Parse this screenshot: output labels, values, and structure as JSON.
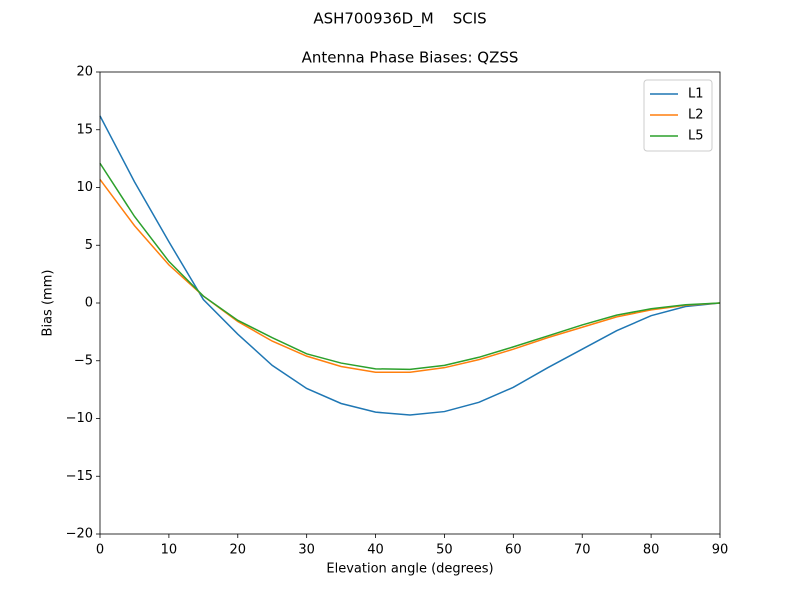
{
  "chart_data": {
    "type": "line",
    "suptitle": "ASH700936D_M    SCIS",
    "title": "Antenna Phase Biases: QZSS",
    "xlabel": "Elevation angle (degrees)",
    "ylabel": "Bias (mm)",
    "x": [
      0,
      5,
      10,
      15,
      20,
      25,
      30,
      35,
      40,
      45,
      50,
      55,
      60,
      65,
      70,
      75,
      80,
      85,
      90
    ],
    "series": [
      {
        "name": "L1",
        "color": "#1f77b4",
        "values": [
          16.2,
          10.5,
          5.3,
          0.3,
          -2.7,
          -5.4,
          -7.4,
          -8.7,
          -9.45,
          -9.7,
          -9.4,
          -8.6,
          -7.3,
          -5.6,
          -4.0,
          -2.4,
          -1.1,
          -0.3,
          0
        ]
      },
      {
        "name": "L2",
        "color": "#ff7f0e",
        "values": [
          10.7,
          6.7,
          3.3,
          0.6,
          -1.6,
          -3.3,
          -4.6,
          -5.5,
          -6.0,
          -6.0,
          -5.6,
          -4.9,
          -4.0,
          -3.0,
          -2.1,
          -1.2,
          -0.6,
          -0.2,
          0
        ]
      },
      {
        "name": "L5",
        "color": "#2ca02c",
        "values": [
          12.1,
          7.5,
          3.6,
          0.6,
          -1.5,
          -3.0,
          -4.4,
          -5.2,
          -5.7,
          -5.75,
          -5.4,
          -4.7,
          -3.8,
          -2.85,
          -1.9,
          -1.05,
          -0.5,
          -0.15,
          0
        ]
      }
    ],
    "xlim": [
      0,
      90
    ],
    "xticks": [
      0,
      10,
      20,
      30,
      40,
      50,
      60,
      70,
      80,
      90
    ],
    "ylim": [
      -20,
      20
    ],
    "yticks": [
      {
        "value": -20,
        "label": "−20"
      },
      {
        "value": -15,
        "label": "−15"
      },
      {
        "value": -10,
        "label": "−10"
      },
      {
        "value": -5,
        "label": "−5"
      },
      0,
      5,
      10,
      15,
      20
    ],
    "grid": false,
    "legend": "upper right"
  }
}
